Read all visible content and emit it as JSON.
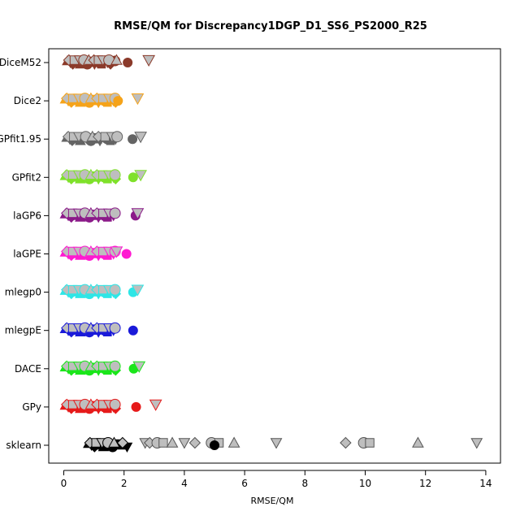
{
  "chart_data": {
    "type": "scatter",
    "title": "RMSE/QM for Discrepancy1DGP_D1_SS6_PS2000_R25",
    "xlabel": "RMSE/QM",
    "ylabel": "",
    "xlim": [
      -0.4,
      14.3
    ],
    "xticks": [
      0,
      2,
      4,
      6,
      8,
      10,
      12,
      14
    ],
    "grid": false,
    "legend": "none",
    "marker_fill_grey": "#bebebe",
    "series": [
      {
        "name": "DiceM52",
        "tick_label": "DiceM52",
        "color": "#8b3a2a",
        "values": [
          0.12,
          0.22,
          0.3,
          0.38,
          0.48,
          0.55,
          0.62,
          0.7,
          0.78,
          0.85,
          0.95,
          1.02,
          1.1,
          1.18,
          1.25,
          1.35,
          1.45,
          1.55,
          1.7
        ],
        "mean": 2.12,
        "outlier": 2.82
      },
      {
        "name": "Dice2",
        "tick_label": "Dice2",
        "color": "#f5a31a",
        "values": [
          0.05,
          0.15,
          0.25,
          0.35,
          0.45,
          0.55,
          0.65,
          0.75,
          0.85,
          0.95,
          1.05,
          1.15,
          1.25,
          1.35,
          1.45,
          1.55,
          1.65,
          1.72
        ],
        "mean": 1.8,
        "outlier": 2.45
      },
      {
        "name": "GPfit1.95",
        "tick_label": "GPfit1.95",
        "color": "#646464",
        "values": [
          0.1,
          0.2,
          0.28,
          0.35,
          0.45,
          0.55,
          0.68,
          0.78,
          0.9,
          1.0,
          1.1,
          1.2,
          1.32,
          1.45,
          1.55,
          1.65,
          1.72
        ],
        "mean": 2.28,
        "outlier": 2.55
      },
      {
        "name": "GPfit2",
        "tick_label": "GPfit2",
        "color": "#7fe12a",
        "values": [
          0.05,
          0.15,
          0.25,
          0.35,
          0.45,
          0.55,
          0.65,
          0.75,
          0.85,
          0.95,
          1.05,
          1.15,
          1.25,
          1.35,
          1.45,
          1.55,
          1.65,
          1.72
        ],
        "mean": 2.3,
        "outlier": 2.55
      },
      {
        "name": "laGP6",
        "tick_label": "laGP6",
        "color": "#8b1a89",
        "values": [
          0.05,
          0.15,
          0.25,
          0.35,
          0.45,
          0.55,
          0.65,
          0.75,
          0.85,
          0.95,
          1.05,
          1.15,
          1.25,
          1.35,
          1.45,
          1.55,
          1.65
        ],
        "mean": 2.38,
        "outlier": 2.45
      },
      {
        "name": "laGPE",
        "tick_label": "laGPE",
        "color": "#ff1ad1",
        "values": [
          0.05,
          0.15,
          0.25,
          0.35,
          0.45,
          0.55,
          0.65,
          0.75,
          0.85,
          0.95,
          1.05,
          1.15,
          1.25,
          1.35,
          1.45,
          1.55,
          1.65
        ],
        "mean": 2.08,
        "outlier": 1.75
      },
      {
        "name": "mlegp0",
        "tick_label": "mlegp0",
        "color": "#2ee6e6",
        "values": [
          0.05,
          0.15,
          0.25,
          0.35,
          0.45,
          0.55,
          0.65,
          0.75,
          0.85,
          0.95,
          1.05,
          1.15,
          1.25,
          1.35,
          1.45,
          1.55,
          1.65,
          1.72
        ],
        "mean": 2.3,
        "outlier": 2.45
      },
      {
        "name": "mlegpE",
        "tick_label": "mlegpE",
        "color": "#1a1ad9",
        "values": [
          0.05,
          0.15,
          0.25,
          0.35,
          0.45,
          0.55,
          0.65,
          0.75,
          0.85,
          0.95,
          1.05,
          1.15,
          1.25,
          1.35,
          1.45,
          1.55,
          1.65
        ],
        "mean": 2.3,
        "outlier": null
      },
      {
        "name": "DACE",
        "tick_label": "DACE",
        "color": "#1ae61a",
        "values": [
          0.05,
          0.15,
          0.25,
          0.35,
          0.45,
          0.55,
          0.65,
          0.75,
          0.85,
          0.95,
          1.05,
          1.15,
          1.25,
          1.35,
          1.45,
          1.55,
          1.65,
          1.72
        ],
        "mean": 2.32,
        "outlier": 2.5
      },
      {
        "name": "GPy",
        "tick_label": "GPy",
        "color": "#e61a1a",
        "values": [
          0.05,
          0.15,
          0.25,
          0.35,
          0.45,
          0.55,
          0.65,
          0.75,
          0.85,
          0.95,
          1.05,
          1.15,
          1.25,
          1.35,
          1.45,
          1.55,
          1.65,
          1.72
        ],
        "mean": 2.4,
        "outlier": 3.05
      },
      {
        "name": "sklearn",
        "tick_label": "sklearn",
        "color": "#000000",
        "values": [
          0.82,
          0.92,
          1.02,
          1.12,
          1.22,
          1.32,
          1.42,
          1.52,
          1.62,
          1.75,
          1.9,
          2.1
        ],
        "extra": [
          2.7,
          2.85,
          3.1,
          3.3,
          3.6,
          4.0,
          4.35,
          4.9,
          5.15,
          5.65,
          7.05,
          9.35,
          9.95,
          10.15,
          11.75,
          13.7
        ],
        "mean": 5.0,
        "outlier": null
      }
    ]
  }
}
